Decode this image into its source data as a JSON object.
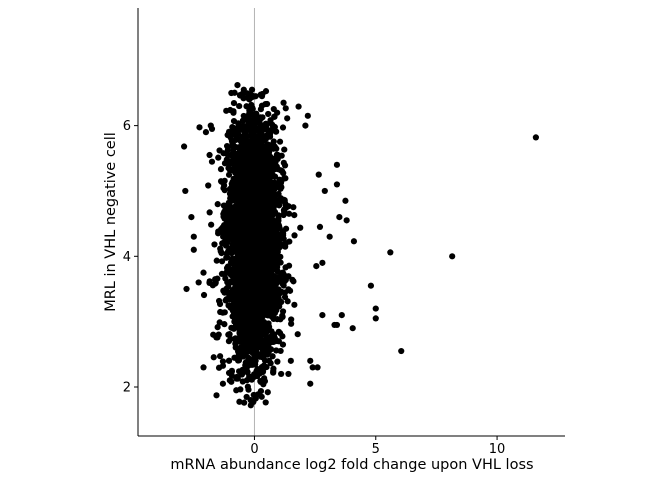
{
  "chart_data": {
    "type": "scatter",
    "xlabel": "mRNA abundance log2 fold change upon VHL loss",
    "ylabel": "MRL in VHL negative cell",
    "xlim": [
      -4.8,
      12.8
    ],
    "ylim": [
      1.25,
      7.8
    ],
    "xticks": [
      {
        "value": 0,
        "label": "0"
      },
      {
        "value": 5,
        "label": "5"
      },
      {
        "value": 10,
        "label": "10"
      }
    ],
    "yticks": [
      {
        "value": 2,
        "label": "2"
      },
      {
        "value": 4,
        "label": "4"
      },
      {
        "value": 6,
        "label": "6"
      }
    ],
    "reference_line_x": 0,
    "point_color": "#000000",
    "grid": false,
    "legend": "none",
    "series": [
      {
        "points": [
          [
            11.6,
            5.82
          ],
          [
            8.15,
            4.0
          ],
          [
            6.05,
            2.55
          ],
          [
            5.6,
            4.06
          ],
          [
            5.0,
            3.2
          ],
          [
            5.0,
            3.05
          ],
          [
            4.8,
            3.55
          ],
          [
            4.1,
            4.23
          ],
          [
            4.05,
            2.9
          ],
          [
            3.8,
            4.55
          ],
          [
            3.75,
            4.85
          ],
          [
            3.5,
            4.6
          ],
          [
            3.4,
            5.4
          ],
          [
            3.4,
            5.1
          ],
          [
            3.4,
            2.95
          ],
          [
            3.6,
            3.1
          ],
          [
            3.3,
            2.95
          ],
          [
            3.1,
            4.3
          ],
          [
            2.9,
            5.0
          ],
          [
            2.8,
            3.9
          ],
          [
            2.8,
            3.1
          ],
          [
            2.7,
            4.45
          ],
          [
            2.65,
            5.25
          ],
          [
            2.6,
            2.3
          ],
          [
            2.55,
            3.85
          ],
          [
            2.4,
            2.3
          ],
          [
            2.3,
            2.05
          ],
          [
            2.3,
            2.4
          ],
          [
            2.2,
            6.15
          ],
          [
            2.1,
            6.0
          ],
          [
            1.2,
            6.35
          ],
          [
            -0.7,
            6.62
          ],
          [
            -0.1,
            6.55
          ],
          [
            0.05,
            6.45
          ],
          [
            -2.9,
            5.68
          ],
          [
            -2.85,
            5.0
          ],
          [
            -2.8,
            3.5
          ],
          [
            -2.6,
            4.6
          ],
          [
            -2.5,
            4.3
          ],
          [
            -2.5,
            4.1
          ],
          [
            -2.3,
            3.6
          ],
          [
            -2.1,
            3.75
          ],
          [
            -2.1,
            2.3
          ],
          [
            -2.0,
            5.9
          ],
          [
            -1.85,
            5.55
          ],
          [
            -1.8,
            6.0
          ],
          [
            -1.75,
            5.95
          ],
          [
            -1.7,
            2.8
          ],
          [
            -1.3,
            2.05
          ],
          [
            -0.75,
            1.95
          ],
          [
            -0.15,
            1.72
          ],
          [
            0.3,
            1.85
          ],
          [
            0.55,
            1.92
          ],
          [
            1.1,
            2.2
          ],
          [
            1.4,
            2.2
          ],
          [
            1.5,
            2.4
          ]
        ],
        "core_cloud": {
          "x_center": -0.05,
          "x_spread": 0.55,
          "y_center": 4.25,
          "y_spread": 0.95,
          "y_min": 1.75,
          "y_max": 6.55
        }
      }
    ]
  }
}
